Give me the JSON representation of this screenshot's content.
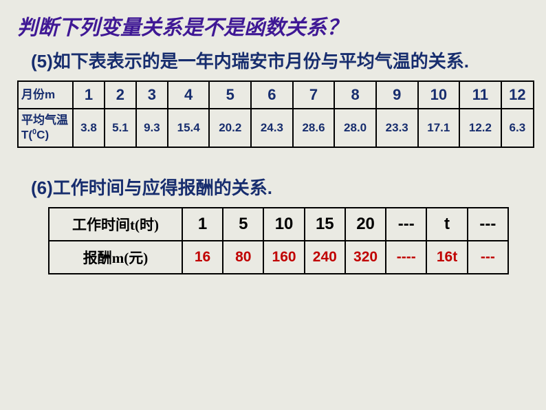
{
  "title": "判断下列变量关系是不是函数关系？",
  "section5": {
    "label_num": "(5)",
    "label_text": "如下表表示的是一年内瑞安市月份与平均气温的关系.",
    "row1_header": "月份m",
    "row2_header_line1": "平均气温",
    "row2_header_line2": "T(",
    "row2_header_sup": "0",
    "row2_header_line3": "C)",
    "months": [
      "1",
      "2",
      "3",
      "4",
      "5",
      "6",
      "7",
      "8",
      "9",
      "10",
      "11",
      "12"
    ],
    "temps": [
      "3.8",
      "5.1",
      "9.3",
      "15.4",
      "20.2",
      "24.3",
      "28.6",
      "28.0",
      "23.3",
      "17.1",
      "12.2",
      "6.3"
    ]
  },
  "section6": {
    "label_num": "(6)",
    "label_text": "工作时间与应得报酬的关系.",
    "row1_header": "工作时间t(时)",
    "row2_header": "报酬m(元)",
    "times": [
      "1",
      "5",
      "10",
      "15",
      "20",
      "---",
      "t",
      "---"
    ],
    "pays": [
      "16",
      "80",
      "160",
      "240",
      "320",
      "----",
      "16t",
      "---"
    ]
  },
  "colors": {
    "title_color": "#3f1895",
    "text_color": "#172d6e",
    "red_color": "#c00000",
    "background": "#eaeae3",
    "border": "#000000"
  }
}
